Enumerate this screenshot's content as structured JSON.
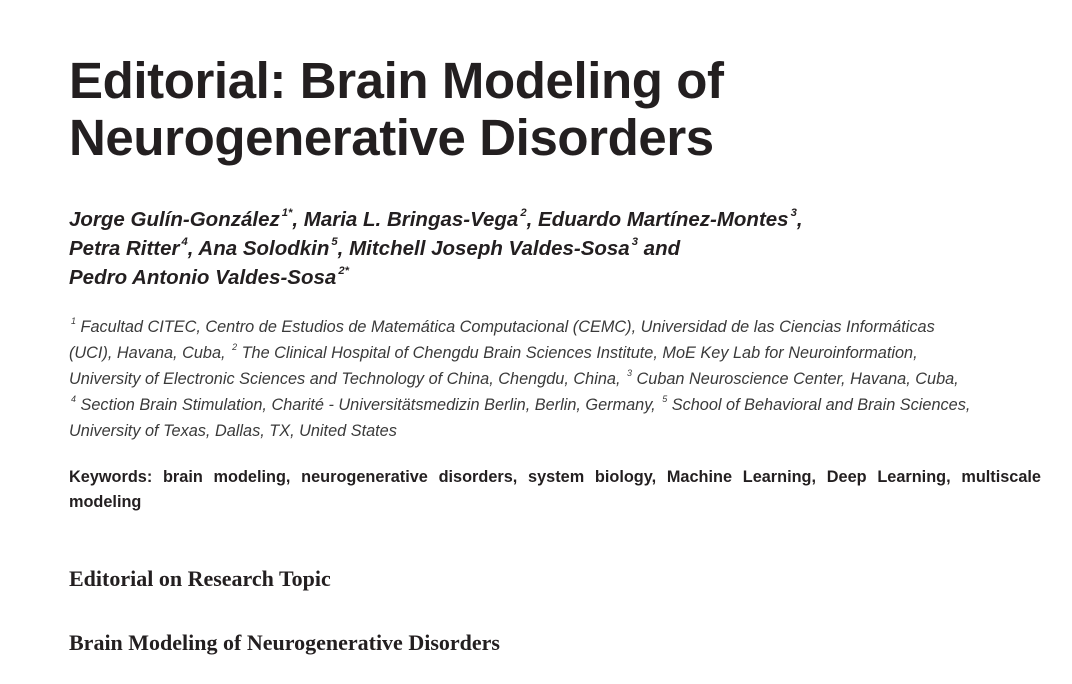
{
  "title": {
    "line1": "Editorial: Brain Modeling of",
    "line2": "Neurogenerative Disorders"
  },
  "authors": [
    {
      "name": "Jorge Gulín-González",
      "sup": "1*",
      "sep": ", "
    },
    {
      "name": "Maria L. Bringas-Vega",
      "sup": "2",
      "sep": ", "
    },
    {
      "name": "Eduardo Martínez-Montes",
      "sup": "3",
      "sep": ","
    },
    {
      "name": "Petra Ritter",
      "sup": "4",
      "sep": ", "
    },
    {
      "name": "Ana Solodkin",
      "sup": "5",
      "sep": ", "
    },
    {
      "name": "Mitchell Joseph Valdes-Sosa",
      "sup": "3",
      "sep": " and"
    },
    {
      "name": "Pedro Antonio Valdes-Sosa",
      "sup": "2*",
      "sep": ""
    }
  ],
  "affiliations": {
    "l1_sup": "1",
    "l1": " Facultad CITEC, Centro de Estudios de Matemática Computacional (CEMC), Universidad de las Ciencias Informáticas",
    "l2a": "(UCI), Havana, Cuba, ",
    "l2_sup": "2",
    "l2b": " The Clinical Hospital of Chengdu Brain Sciences Institute, MoE Key Lab for Neuroinformation,",
    "l3a": "University of Electronic Sciences and Technology of China, Chengdu, China, ",
    "l3_sup": "3",
    "l3b": " Cuban Neuroscience Center, Havana, Cuba,",
    "l4_sup": "4",
    "l4a": " Section Brain Stimulation, Charité - Universitätsmedizin Berlin, Berlin, Germany, ",
    "l4_sup2": "5",
    "l4b": " School of Behavioral and Brain Sciences,",
    "l5": "University of Texas, Dallas, TX, United States"
  },
  "keywords": "Keywords: brain modeling, neurogenerative disorders, system biology, Machine Learning, Deep Learning, multiscale modeling",
  "sections": {
    "editorial_on": "Editorial on Research Topic",
    "topic_title": "Brain Modeling of Neurogenerative Disorders"
  }
}
